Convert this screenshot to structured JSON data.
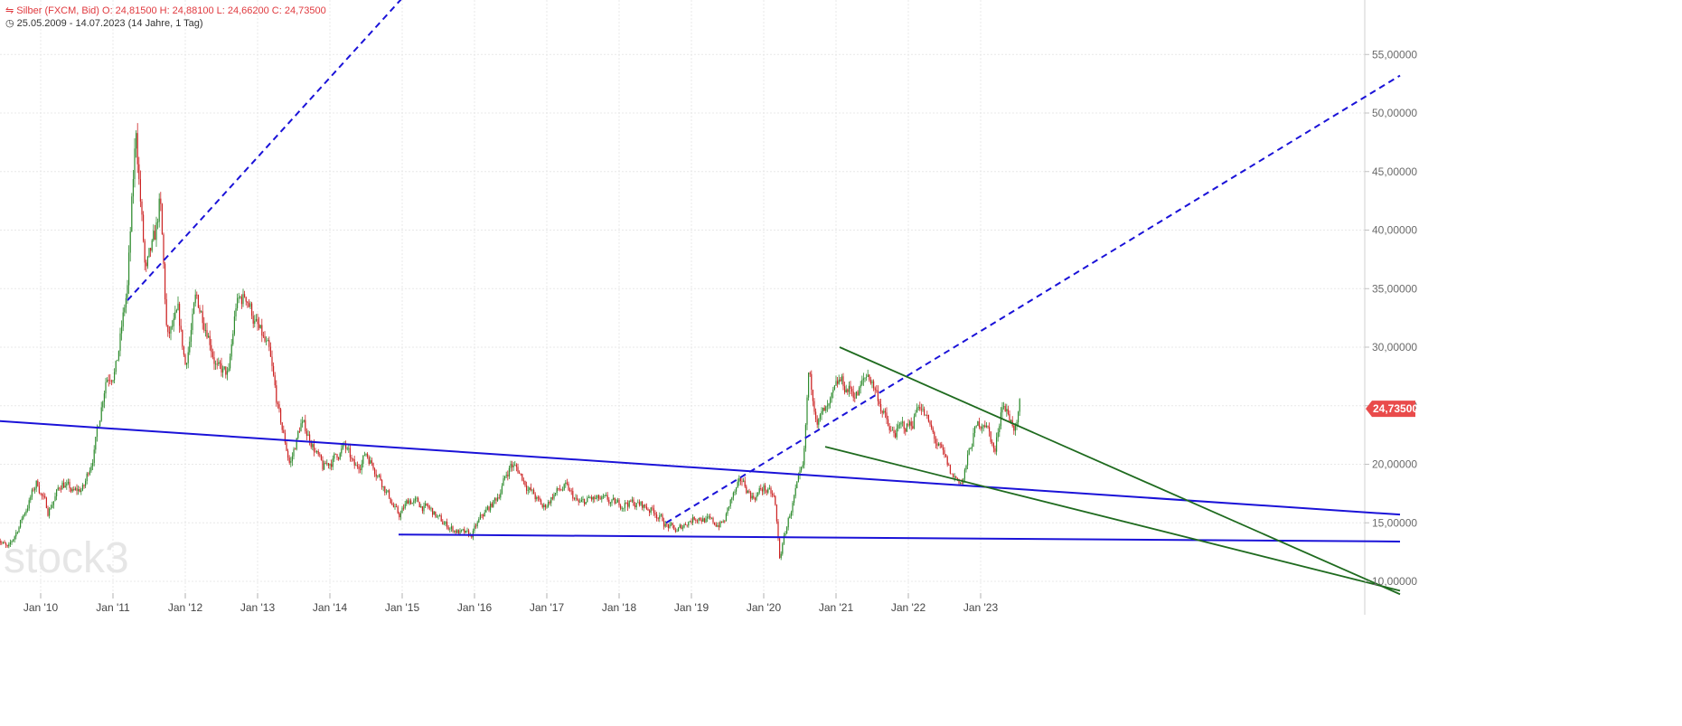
{
  "header": {
    "instrument_line": "Silber (FXCM, Bid)  O: 24,81500  H: 24,88100  L: 24,66200  C: 24,73500",
    "range_line": "25.05.2009 - 14.07.2023   (14 Jahre, 1 Tag)",
    "watermark": "stock3",
    "last_price_label": "24,73500"
  },
  "colors": {
    "up": "#2e8b2e",
    "down": "#cc2222",
    "blue": "#1a12d8",
    "green": "#1f6b1f",
    "last": "#e94b4b"
  },
  "chart_data": {
    "type": "candlestick",
    "title": "Silber (FXCM, Bid)",
    "xlabel": "",
    "ylabel": "",
    "x_range": [
      "2009-05-25",
      "2023-07-14"
    ],
    "ylim": [
      9.0,
      59.0
    ],
    "y_ticks": [
      10,
      15,
      20,
      25,
      30,
      35,
      40,
      45,
      50,
      55
    ],
    "y_tick_labels": [
      "10,00000",
      "15,00000",
      "20,00000",
      "25,00000",
      "30,00000",
      "35,00000",
      "40,00000",
      "45,00000",
      "50,00000",
      "55,00000"
    ],
    "x_ticks": [
      2010,
      2011,
      2012,
      2013,
      2014,
      2015,
      2016,
      2017,
      2018,
      2019,
      2020,
      2021,
      2022,
      2023
    ],
    "x_tick_labels": [
      "Jan '10",
      "Jan '11",
      "Jan '12",
      "Jan '13",
      "Jan '14",
      "Jan '15",
      "Jan '16",
      "Jan '17",
      "Jan '18",
      "Jan '19",
      "Jan '20",
      "Jan '21",
      "Jan '22",
      "Jan '23"
    ],
    "grid": true,
    "last_value": 24.735,
    "price_path": [
      [
        2009.4,
        14.0
      ],
      [
        2009.55,
        12.6
      ],
      [
        2009.75,
        15.5
      ],
      [
        2009.95,
        18.5
      ],
      [
        2010.1,
        16.0
      ],
      [
        2010.3,
        18.5
      ],
      [
        2010.45,
        17.5
      ],
      [
        2010.6,
        18.0
      ],
      [
        2010.75,
        21.5
      ],
      [
        2010.9,
        27.5
      ],
      [
        2011.05,
        28.5
      ],
      [
        2011.2,
        35.0
      ],
      [
        2011.32,
        48.5
      ],
      [
        2011.45,
        36.0
      ],
      [
        2011.58,
        39.0
      ],
      [
        2011.65,
        42.5
      ],
      [
        2011.75,
        30.5
      ],
      [
        2011.9,
        32.5
      ],
      [
        2012.0,
        28.5
      ],
      [
        2012.15,
        34.0
      ],
      [
        2012.3,
        32.0
      ],
      [
        2012.45,
        28.0
      ],
      [
        2012.6,
        27.5
      ],
      [
        2012.7,
        33.5
      ],
      [
        2012.85,
        34.5
      ],
      [
        2013.0,
        31.5
      ],
      [
        2013.15,
        29.5
      ],
      [
        2013.3,
        24.0
      ],
      [
        2013.45,
        20.0
      ],
      [
        2013.6,
        23.5
      ],
      [
        2013.75,
        22.0
      ],
      [
        2013.9,
        19.5
      ],
      [
        2014.05,
        20.5
      ],
      [
        2014.2,
        21.5
      ],
      [
        2014.35,
        19.5
      ],
      [
        2014.5,
        21.0
      ],
      [
        2014.65,
        19.5
      ],
      [
        2014.8,
        17.5
      ],
      [
        2014.95,
        15.5
      ],
      [
        2015.1,
        17.0
      ],
      [
        2015.25,
        16.5
      ],
      [
        2015.4,
        16.0
      ],
      [
        2015.55,
        15.0
      ],
      [
        2015.7,
        14.5
      ],
      [
        2015.85,
        14.0
      ],
      [
        2015.95,
        13.8
      ],
      [
        2016.1,
        15.5
      ],
      [
        2016.3,
        17.0
      ],
      [
        2016.5,
        20.0
      ],
      [
        2016.6,
        19.5
      ],
      [
        2016.8,
        17.5
      ],
      [
        2016.95,
        16.2
      ],
      [
        2017.1,
        17.5
      ],
      [
        2017.25,
        18.0
      ],
      [
        2017.45,
        16.5
      ],
      [
        2017.6,
        17.0
      ],
      [
        2017.8,
        16.8
      ],
      [
        2017.95,
        16.5
      ],
      [
        2018.1,
        16.8
      ],
      [
        2018.3,
        16.5
      ],
      [
        2018.5,
        16.0
      ],
      [
        2018.65,
        14.8
      ],
      [
        2018.8,
        14.2
      ],
      [
        2018.95,
        15.2
      ],
      [
        2019.1,
        15.6
      ],
      [
        2019.3,
        14.9
      ],
      [
        2019.45,
        15.0
      ],
      [
        2019.55,
        17.0
      ],
      [
        2019.7,
        18.5
      ],
      [
        2019.85,
        17.2
      ],
      [
        2020.0,
        18.0
      ],
      [
        2020.15,
        17.0
      ],
      [
        2020.22,
        12.0
      ],
      [
        2020.35,
        15.5
      ],
      [
        2020.45,
        17.8
      ],
      [
        2020.55,
        19.5
      ],
      [
        2020.62,
        27.5
      ],
      [
        2020.75,
        24.0
      ],
      [
        2020.9,
        24.5
      ],
      [
        2021.05,
        27.0
      ],
      [
        2021.15,
        26.5
      ],
      [
        2021.3,
        26.0
      ],
      [
        2021.45,
        27.8
      ],
      [
        2021.6,
        25.5
      ],
      [
        2021.75,
        22.5
      ],
      [
        2021.9,
        23.0
      ],
      [
        2022.05,
        23.5
      ],
      [
        2022.15,
        25.5
      ],
      [
        2022.3,
        23.0
      ],
      [
        2022.45,
        21.0
      ],
      [
        2022.6,
        19.0
      ],
      [
        2022.75,
        18.5
      ],
      [
        2022.9,
        22.5
      ],
      [
        2023.05,
        24.0
      ],
      [
        2023.2,
        21.0
      ],
      [
        2023.3,
        25.5
      ],
      [
        2023.4,
        24.0
      ],
      [
        2023.5,
        23.0
      ],
      [
        2023.54,
        24.735
      ]
    ],
    "trendlines": [
      {
        "style": "blue-dashed",
        "from": [
          2011.2,
          34.0
        ],
        "to": [
          2016.5,
          70.0
        ]
      },
      {
        "style": "blue-dashed",
        "from": [
          2018.65,
          15.0
        ],
        "to": [
          2028.8,
          53.2
        ]
      },
      {
        "style": "blue-solid",
        "from": [
          2009.4,
          23.7
        ],
        "to": [
          2028.8,
          15.7
        ]
      },
      {
        "style": "blue-solid",
        "from": [
          2014.95,
          14.0
        ],
        "to": [
          2028.8,
          13.4
        ]
      },
      {
        "style": "green-solid",
        "from": [
          2021.05,
          30.0
        ],
        "to": [
          2028.8,
          8.9
        ]
      },
      {
        "style": "green-solid",
        "from": [
          2020.85,
          21.5
        ],
        "to": [
          2028.8,
          9.2
        ]
      }
    ]
  }
}
